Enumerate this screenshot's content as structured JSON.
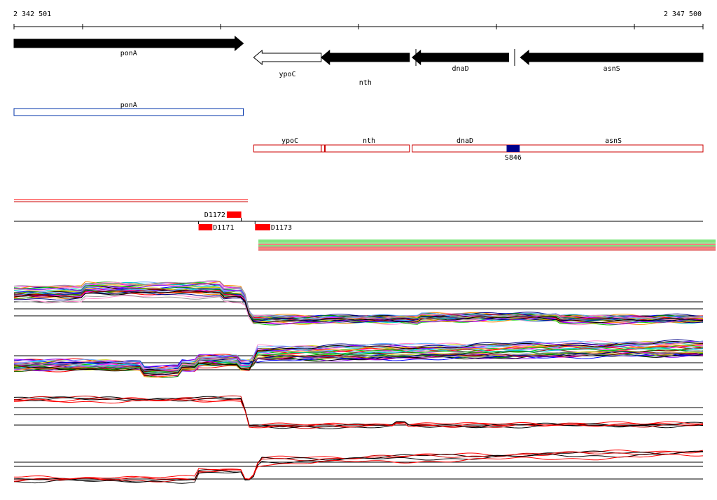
{
  "ruler": {
    "start_label": "2 342 501",
    "end_label": "2 347 500",
    "start": 2342501,
    "end": 2347500
  },
  "genes": [
    {
      "name": "ponA",
      "strand": "+",
      "start": 2342501,
      "end": 2344165,
      "fill": "black"
    },
    {
      "name": "ypoC",
      "strand": "-",
      "start": 2344240,
      "end": 2344730,
      "fill": "white"
    },
    {
      "name": "nth",
      "strand": "-",
      "start": 2344730,
      "end": 2345370,
      "fill": "black"
    },
    {
      "name": "dnaD",
      "strand": "-",
      "start": 2345390,
      "end": 2346090,
      "fill": "black"
    },
    {
      "name": "asnS",
      "strand": "-",
      "start": 2346175,
      "end": 2347500,
      "fill": "black"
    }
  ],
  "transcripts_plus": [
    {
      "label": "ponA",
      "start": 2342501,
      "end": 2344165,
      "color": "#0033aa"
    }
  ],
  "transcripts_minus": [
    {
      "label": "ypoC",
      "start": 2344240,
      "end": 2344730,
      "color": "#cc0000"
    },
    {
      "label": "nth",
      "start": 2344730,
      "end": 2345370,
      "color": "#cc0000"
    },
    {
      "label": "dnaD",
      "start": 2345390,
      "end": 2347500,
      "color": "#cc0000"
    },
    {
      "label": "asnS",
      "start": 2345390,
      "end": 2347500,
      "color": "#cc0000"
    }
  ],
  "site": {
    "label": "S846",
    "start": 2346075,
    "end": 2346170,
    "color": "#00008b"
  },
  "features_top": [
    {
      "label": "D1172",
      "start": 2344045,
      "end": 2344150,
      "color": "#ff0000"
    }
  ],
  "features_bottom": [
    {
      "label": "D1171",
      "start": 2343840,
      "end": 2343940,
      "color": "#ff0000"
    },
    {
      "label": "D1173",
      "start": 2344250,
      "end": 2344360,
      "color": "#ff0000"
    }
  ],
  "colors": {
    "red": "#ff0000",
    "green": "#00cc00",
    "black": "#000000",
    "gene_fill": "#000000",
    "blue": "#0033aa",
    "dark_red": "#cc0000"
  }
}
